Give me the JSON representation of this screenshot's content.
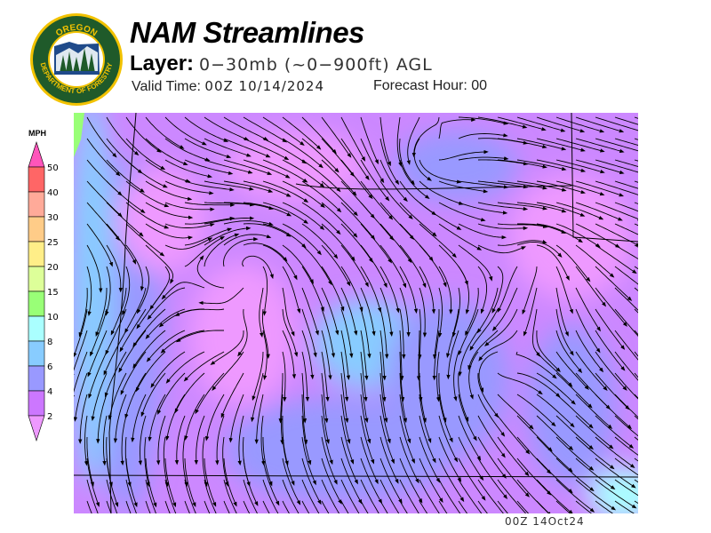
{
  "header": {
    "title": "NAM Streamlines",
    "layer_label": "Layer:",
    "layer_value": "0−30mb (~0−900ft) AGL",
    "valid_label": "Valid Time:",
    "valid_value": "00Z 10/14/2024",
    "forecast_label": "Forecast Hour:",
    "forecast_value": "00"
  },
  "logo": {
    "top_text": "OREGON",
    "bottom_text": "DEPARTMENT OF FORESTRY",
    "colors": {
      "ring": "#1f5a2a",
      "border": "#f2c200"
    }
  },
  "legend": {
    "unit": "MPH",
    "ticks": [
      "50",
      "40",
      "30",
      "25",
      "20",
      "15",
      "10",
      "8",
      "6",
      "4",
      "2"
    ],
    "colors": {
      "over": "#ff55bb",
      "40-50": "#ff6666",
      "30-40": "#ffaa99",
      "25-30": "#ffcc88",
      "20-25": "#ffee88",
      "15-20": "#ddff99",
      "10-15": "#99ff77",
      "8-10": "#aaffff",
      "6-8": "#88ccff",
      "4-6": "#9999ff",
      "2-4": "#cc77ff",
      "under": "#ee99ff"
    }
  },
  "map": {
    "region": "Oregon",
    "field": "wind streamlines",
    "dominant_speed_mph": "2-6"
  },
  "stamp": "00Z 14Oct24"
}
